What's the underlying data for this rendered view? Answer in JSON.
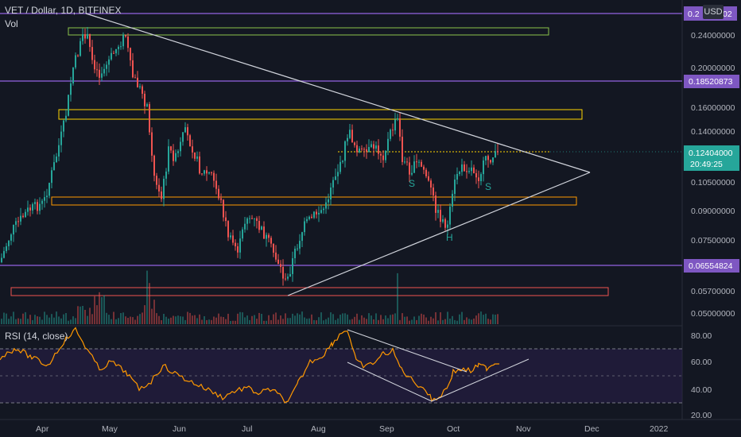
{
  "header": {
    "symbol_title": "VET / Dollar, 1D, BITFINEX",
    "volume_label": "Vol",
    "currency_button": "USD"
  },
  "price_axis": {
    "ticks": [
      "0.24000000",
      "0.20000000",
      "0.16000000",
      "0.14000000",
      "0.10500000",
      "0.09000000",
      "0.07500000",
      "0.05700000",
      "0.05000000"
    ],
    "top_partial_label": "0.2",
    "top_partial_suffix": "02"
  },
  "price_badges": [
    {
      "label": "0.18520873",
      "color": "#7e57c2"
    },
    {
      "label": "0.06554824",
      "color": "#7e57c2"
    },
    {
      "label": "0.12404000",
      "color": "#26a69a"
    }
  ],
  "countdown": "20:49:25",
  "rsi": {
    "label": "RSI (14, close)",
    "ticks": [
      "80.00",
      "60.00",
      "40.00",
      "20.00"
    ],
    "line_color": "#ff9800",
    "band_fill": "#2a1f4a",
    "upper_level": 70,
    "lower_level": 30
  },
  "time_axis": {
    "labels": [
      "Apr",
      "May",
      "Jun",
      "Jul",
      "Aug",
      "Sep",
      "Oct",
      "Nov",
      "Dec",
      "2022"
    ]
  },
  "pattern_labels": [
    "S",
    "S",
    "H"
  ],
  "colors": {
    "up": "#26a69a",
    "down": "#ef5350",
    "resistance_purple": "#7e57c2",
    "triangle": "#d1d4dc"
  }
}
